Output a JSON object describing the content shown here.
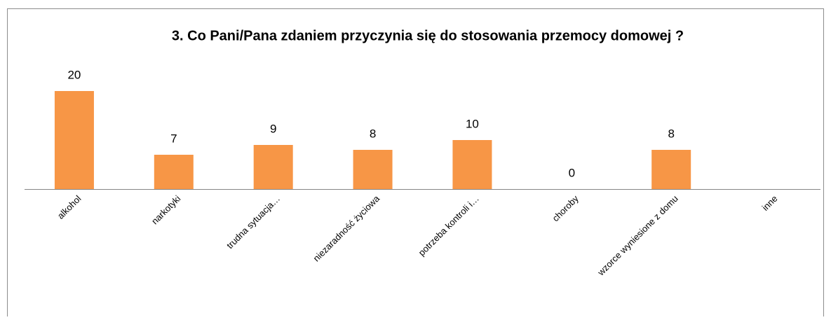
{
  "chart_data": {
    "type": "bar",
    "title": "3. Co Pani/Pana zdaniem przyczynia się do stosowania przemocy domowej ?",
    "categories": [
      "alkohol",
      "narkotyki",
      "trudna sytuacja…",
      "niezaradność życiowa",
      "potrzeba kontroli i…",
      "choroby",
      "wzorce wyniesione z domu",
      "inne"
    ],
    "values": [
      20,
      7,
      9,
      8,
      10,
      0,
      8,
      null
    ],
    "color": "#f79646"
  }
}
